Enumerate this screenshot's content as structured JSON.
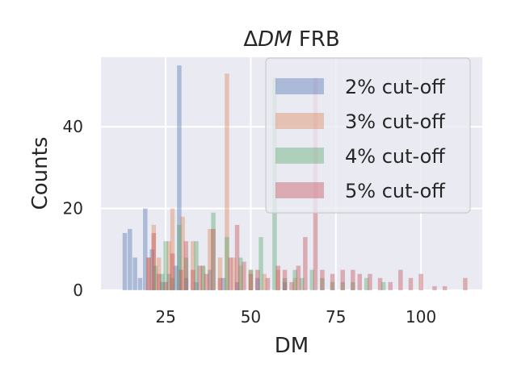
{
  "chart_data": {
    "type": "histogram",
    "title_symbol": "Δ",
    "title_italic": "DM",
    "title_rest": " FRB",
    "xlabel": "DM",
    "ylabel": "Counts",
    "xlim": [
      6,
      118
    ],
    "ylim": [
      0,
      57
    ],
    "xticks": [
      25,
      50,
      75,
      100
    ],
    "yticks": [
      0,
      20,
      40
    ],
    "grid": true,
    "legend_position": "top-right",
    "series": [
      {
        "name": "2% cut-off",
        "color": "#4c72b0",
        "bins": [
          {
            "x": 13,
            "y": 14
          },
          {
            "x": 14.5,
            "y": 15
          },
          {
            "x": 16,
            "y": 8
          },
          {
            "x": 17.5,
            "y": 3
          },
          {
            "x": 19,
            "y": 20
          },
          {
            "x": 21,
            "y": 10
          },
          {
            "x": 24,
            "y": 2
          },
          {
            "x": 26,
            "y": 4
          },
          {
            "x": 28,
            "y": 6
          },
          {
            "x": 29,
            "y": 55
          },
          {
            "x": 31,
            "y": 3
          },
          {
            "x": 34,
            "y": 2
          },
          {
            "x": 38,
            "y": 5
          },
          {
            "x": 42,
            "y": 3
          },
          {
            "x": 46,
            "y": 2
          },
          {
            "x": 52,
            "y": 3
          },
          {
            "x": 60,
            "y": 2
          }
        ]
      },
      {
        "name": "3% cut-off",
        "color": "#dd8452",
        "bins": [
          {
            "x": 20,
            "y": 8
          },
          {
            "x": 21.5,
            "y": 16
          },
          {
            "x": 23,
            "y": 8
          },
          {
            "x": 26,
            "y": 12
          },
          {
            "x": 27,
            "y": 20
          },
          {
            "x": 30,
            "y": 18
          },
          {
            "x": 33,
            "y": 12
          },
          {
            "x": 36,
            "y": 6
          },
          {
            "x": 38,
            "y": 15
          },
          {
            "x": 41,
            "y": 8
          },
          {
            "x": 43,
            "y": 53
          },
          {
            "x": 45,
            "y": 8
          },
          {
            "x": 47,
            "y": 6
          },
          {
            "x": 50,
            "y": 5
          },
          {
            "x": 54,
            "y": 4
          },
          {
            "x": 58,
            "y": 5
          },
          {
            "x": 63,
            "y": 3
          }
        ]
      },
      {
        "name": "4% cut-off",
        "color": "#55a868",
        "bins": [
          {
            "x": 22,
            "y": 6
          },
          {
            "x": 24,
            "y": 4
          },
          {
            "x": 25,
            "y": 12
          },
          {
            "x": 27,
            "y": 3
          },
          {
            "x": 29,
            "y": 16
          },
          {
            "x": 31,
            "y": 8
          },
          {
            "x": 34,
            "y": 12
          },
          {
            "x": 36,
            "y": 6
          },
          {
            "x": 39,
            "y": 19
          },
          {
            "x": 43,
            "y": 13
          },
          {
            "x": 47,
            "y": 8
          },
          {
            "x": 50,
            "y": 5
          },
          {
            "x": 53,
            "y": 13
          },
          {
            "x": 57,
            "y": 52
          },
          {
            "x": 60,
            "y": 3
          },
          {
            "x": 63,
            "y": 5
          },
          {
            "x": 65,
            "y": 3
          },
          {
            "x": 68,
            "y": 5
          },
          {
            "x": 71,
            "y": 3
          },
          {
            "x": 74,
            "y": 2
          },
          {
            "x": 77,
            "y": 2
          },
          {
            "x": 80,
            "y": 2
          },
          {
            "x": 84,
            "y": 3
          },
          {
            "x": 89,
            "y": 2
          }
        ]
      },
      {
        "name": "5% cut-off",
        "color": "#c44e52",
        "bins": [
          {
            "x": 20,
            "y": 8
          },
          {
            "x": 21.5,
            "y": 14
          },
          {
            "x": 23,
            "y": 4
          },
          {
            "x": 25,
            "y": 2
          },
          {
            "x": 27,
            "y": 9
          },
          {
            "x": 29.5,
            "y": 5
          },
          {
            "x": 31,
            "y": 12
          },
          {
            "x": 33,
            "y": 5
          },
          {
            "x": 35,
            "y": 6
          },
          {
            "x": 37,
            "y": 4
          },
          {
            "x": 39,
            "y": 15
          },
          {
            "x": 41,
            "y": 3
          },
          {
            "x": 44,
            "y": 8
          },
          {
            "x": 46,
            "y": 16
          },
          {
            "x": 48,
            "y": 7
          },
          {
            "x": 50,
            "y": 4
          },
          {
            "x": 52,
            "y": 5
          },
          {
            "x": 55,
            "y": 3
          },
          {
            "x": 58,
            "y": 6
          },
          {
            "x": 60,
            "y": 5
          },
          {
            "x": 62,
            "y": 2
          },
          {
            "x": 64,
            "y": 6
          },
          {
            "x": 66,
            "y": 13
          },
          {
            "x": 69,
            "y": 52
          },
          {
            "x": 71,
            "y": 5
          },
          {
            "x": 74,
            "y": 4
          },
          {
            "x": 77,
            "y": 5
          },
          {
            "x": 80,
            "y": 5
          },
          {
            "x": 82,
            "y": 4
          },
          {
            "x": 85,
            "y": 4
          },
          {
            "x": 88,
            "y": 3
          },
          {
            "x": 91,
            "y": 2
          },
          {
            "x": 94,
            "y": 5
          },
          {
            "x": 97,
            "y": 3
          },
          {
            "x": 100,
            "y": 4
          },
          {
            "x": 104,
            "y": 1
          },
          {
            "x": 107,
            "y": 1
          },
          {
            "x": 113,
            "y": 3
          }
        ]
      }
    ]
  }
}
